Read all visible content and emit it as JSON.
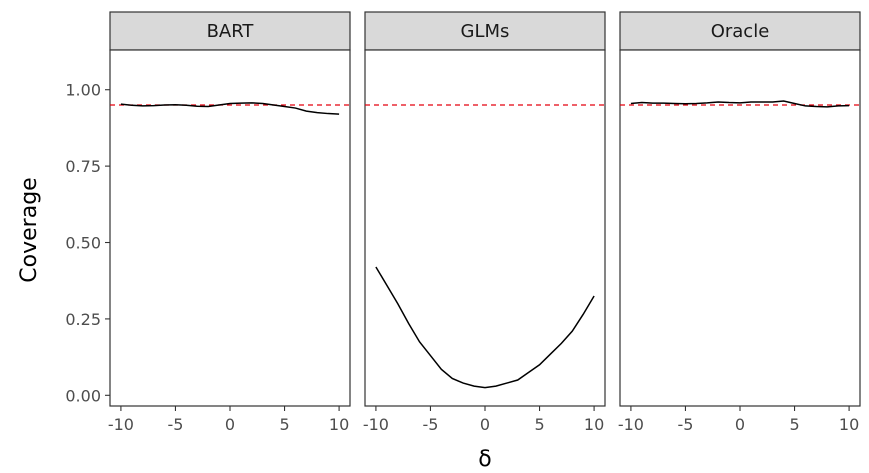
{
  "chart_data": {
    "type": "line",
    "facet_strip_bg": "#d9d9d9",
    "reference_color": "#e3000f",
    "line_color": "#000000",
    "xlabel": "δ",
    "ylabel": "Coverage",
    "xlim": [
      -11,
      11
    ],
    "ylim": [
      -0.035,
      1.13
    ],
    "x_ticks": [
      -10,
      -5,
      0,
      5,
      10
    ],
    "x_tick_labels": [
      "-10",
      "-5",
      "0",
      "5",
      "10"
    ],
    "y_ticks": [
      0,
      0.25,
      0.5,
      0.75,
      1
    ],
    "y_tick_labels": [
      "0.00",
      "0.25",
      "0.50",
      "0.75",
      "1.00"
    ],
    "reference_line": 0.95,
    "grid": false,
    "x": [
      -10,
      -9,
      -8,
      -7,
      -6,
      -5,
      -4,
      -3,
      -2,
      -1,
      0,
      1,
      2,
      3,
      4,
      5,
      6,
      7,
      8,
      9,
      10
    ],
    "panels": [
      {
        "name": "BART",
        "values": [
          0.953,
          0.949,
          0.947,
          0.948,
          0.95,
          0.951,
          0.949,
          0.946,
          0.945,
          0.95,
          0.955,
          0.956,
          0.957,
          0.955,
          0.95,
          0.945,
          0.94,
          0.93,
          0.925,
          0.922,
          0.92
        ]
      },
      {
        "name": "GLMs",
        "values": [
          0.42,
          0.36,
          0.3,
          0.235,
          0.175,
          0.13,
          0.085,
          0.055,
          0.04,
          0.03,
          0.025,
          0.03,
          0.04,
          0.05,
          0.075,
          0.1,
          0.135,
          0.17,
          0.21,
          0.265,
          0.325
        ]
      },
      {
        "name": "Oracle",
        "values": [
          0.955,
          0.958,
          0.956,
          0.956,
          0.955,
          0.954,
          0.955,
          0.957,
          0.96,
          0.958,
          0.957,
          0.96,
          0.96,
          0.96,
          0.963,
          0.955,
          0.947,
          0.945,
          0.944,
          0.947,
          0.948
        ]
      }
    ]
  }
}
